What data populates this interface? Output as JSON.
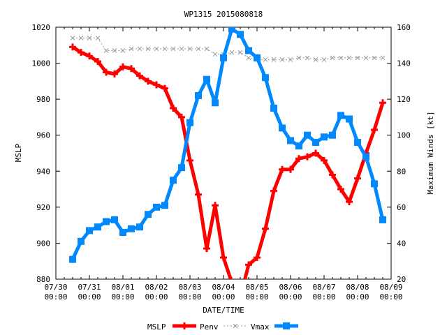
{
  "chart_data": {
    "type": "line",
    "title": "WP1315 2015080818",
    "xlabel": "DATE/TIME",
    "ylabel": "MSLP",
    "y2label": "Maximum Winds [kt]",
    "x_ticks": [
      {
        "date": "07/30",
        "time": "00:00"
      },
      {
        "date": "07/31",
        "time": "00:00"
      },
      {
        "date": "08/01",
        "time": "00:00"
      },
      {
        "date": "08/02",
        "time": "00:00"
      },
      {
        "date": "08/03",
        "time": "00:00"
      },
      {
        "date": "08/04",
        "time": "00:00"
      },
      {
        "date": "08/05",
        "time": "00:00"
      },
      {
        "date": "08/06",
        "time": "00:00"
      },
      {
        "date": "08/07",
        "time": "00:00"
      },
      {
        "date": "08/08",
        "time": "00:00"
      },
      {
        "date": "08/09",
        "time": "00:00"
      }
    ],
    "xlim": [
      "2015-07-30 00:00",
      "2015-08-09 00:00"
    ],
    "ylim": [
      880,
      1020
    ],
    "y_ticks": [
      880,
      900,
      920,
      940,
      960,
      980,
      1000,
      1020
    ],
    "y2lim": [
      20,
      160
    ],
    "y2_ticks": [
      20,
      40,
      60,
      80,
      100,
      120,
      140,
      160
    ],
    "x": [
      "2015-07-30 12:00",
      "2015-07-30 18:00",
      "2015-07-31 00:00",
      "2015-07-31 06:00",
      "2015-07-31 12:00",
      "2015-07-31 18:00",
      "2015-08-01 00:00",
      "2015-08-01 06:00",
      "2015-08-01 12:00",
      "2015-08-01 18:00",
      "2015-08-02 00:00",
      "2015-08-02 06:00",
      "2015-08-02 12:00",
      "2015-08-02 18:00",
      "2015-08-03 00:00",
      "2015-08-03 06:00",
      "2015-08-03 12:00",
      "2015-08-03 18:00",
      "2015-08-04 00:00",
      "2015-08-04 06:00",
      "2015-08-04 12:00",
      "2015-08-04 18:00",
      "2015-08-05 00:00",
      "2015-08-05 06:00",
      "2015-08-05 12:00",
      "2015-08-05 18:00",
      "2015-08-06 00:00",
      "2015-08-06 06:00",
      "2015-08-06 12:00",
      "2015-08-06 18:00",
      "2015-08-07 00:00",
      "2015-08-07 06:00",
      "2015-08-07 12:00",
      "2015-08-07 18:00",
      "2015-08-08 00:00",
      "2015-08-08 06:00",
      "2015-08-08 12:00",
      "2015-08-08 18:00"
    ],
    "series": [
      {
        "name": "MSLP",
        "axis": "left",
        "color": "#000000",
        "values": [
          null,
          null,
          null,
          null,
          null,
          null,
          null,
          null,
          null,
          null,
          null,
          null,
          null,
          null,
          null,
          null,
          null,
          null,
          null,
          null,
          null,
          null,
          null,
          null,
          null,
          null,
          null,
          null,
          null,
          null,
          null,
          null,
          null,
          null,
          null,
          null,
          null,
          null
        ]
      },
      {
        "name": "Penv",
        "axis": "left",
        "color": "#ff0000",
        "marker": "plus",
        "values": [
          1009,
          1006,
          1004,
          1001,
          995,
          994,
          998,
          997,
          993,
          990,
          988,
          986,
          975,
          970,
          946,
          927,
          897,
          921,
          892,
          878,
          870,
          888,
          892,
          908,
          929,
          941,
          941,
          947,
          948,
          950,
          946,
          938,
          930,
          923,
          936,
          950,
          963,
          978
        ]
      },
      {
        "name": "Vmax",
        "axis": "right",
        "color": "#999999",
        "marker": "x",
        "values": [
          154,
          154,
          154,
          154,
          147,
          147,
          147,
          148,
          148,
          148,
          148,
          148,
          148,
          148,
          148,
          148,
          148,
          145,
          145,
          146,
          146,
          143,
          142,
          142,
          142,
          142,
          142,
          143,
          143,
          142,
          142,
          143,
          143,
          143,
          143,
          143,
          143,
          143
        ]
      },
      {
        "name": "Vmax",
        "axis": "right",
        "color": "#0088ff",
        "marker": "square",
        "values": [
          31,
          41,
          47,
          49,
          52,
          53,
          46,
          48,
          49,
          56,
          60,
          61,
          75,
          82,
          107,
          122,
          131,
          118,
          143,
          159,
          156,
          147,
          143,
          132,
          115,
          104,
          97,
          94,
          100,
          96,
          99,
          100,
          111,
          109,
          96,
          88,
          73,
          53
        ]
      }
    ],
    "grid": false,
    "legend_position": "bottom-center"
  }
}
